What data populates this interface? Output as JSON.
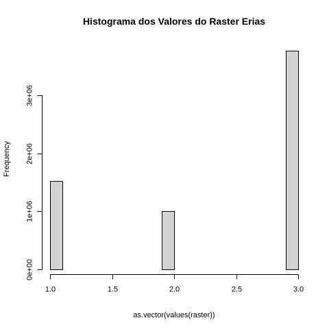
{
  "chart_data": {
    "type": "bar",
    "title": "Histograma dos Valores do Raster Erias",
    "xlabel": "as.vector(values(raster))",
    "ylabel": "Frequency",
    "xlim": [
      1.0,
      3.0
    ],
    "ylim": [
      0,
      3800000
    ],
    "x_ticks": [
      1.0,
      1.5,
      2.0,
      2.5,
      3.0
    ],
    "x_tick_labels": [
      "1.0",
      "1.5",
      "2.0",
      "2.5",
      "3.0"
    ],
    "y_ticks": [
      0,
      1000000,
      2000000,
      3000000
    ],
    "y_tick_labels": [
      "0e+00",
      "1e+06",
      "2e+06",
      "3e+06"
    ],
    "bins": [
      {
        "x0": 1.0,
        "x1": 1.1,
        "value": 1520000
      },
      {
        "x0": 1.1,
        "x1": 1.2,
        "value": 0
      },
      {
        "x0": 1.2,
        "x1": 1.3,
        "value": 0
      },
      {
        "x0": 1.3,
        "x1": 1.4,
        "value": 0
      },
      {
        "x0": 1.4,
        "x1": 1.5,
        "value": 0
      },
      {
        "x0": 1.5,
        "x1": 1.6,
        "value": 0
      },
      {
        "x0": 1.6,
        "x1": 1.7,
        "value": 0
      },
      {
        "x0": 1.7,
        "x1": 1.8,
        "value": 0
      },
      {
        "x0": 1.8,
        "x1": 1.9,
        "value": 0
      },
      {
        "x0": 1.9,
        "x1": 2.0,
        "value": 1000000
      },
      {
        "x0": 2.0,
        "x1": 2.1,
        "value": 0
      },
      {
        "x0": 2.1,
        "x1": 2.2,
        "value": 0
      },
      {
        "x0": 2.2,
        "x1": 2.3,
        "value": 0
      },
      {
        "x0": 2.3,
        "x1": 2.4,
        "value": 0
      },
      {
        "x0": 2.4,
        "x1": 2.5,
        "value": 0
      },
      {
        "x0": 2.5,
        "x1": 2.6,
        "value": 0
      },
      {
        "x0": 2.6,
        "x1": 2.7,
        "value": 0
      },
      {
        "x0": 2.7,
        "x1": 2.8,
        "value": 0
      },
      {
        "x0": 2.8,
        "x1": 2.9,
        "value": 0
      },
      {
        "x0": 2.9,
        "x1": 3.0,
        "value": 3760000
      }
    ],
    "bar_color": "#d3d3d3",
    "grid": false,
    "legend": "none"
  }
}
